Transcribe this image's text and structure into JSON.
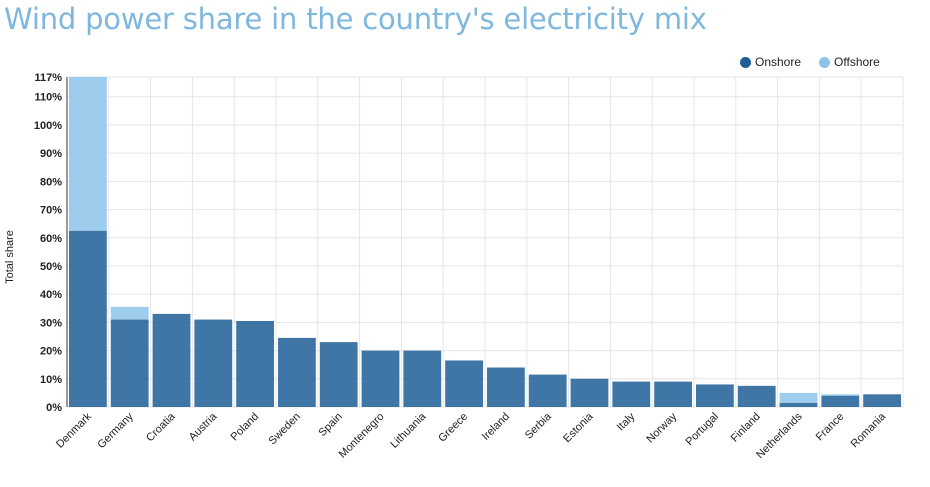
{
  "chart_data": {
    "type": "bar",
    "stacked": true,
    "title": "Wind power share in the country's electricity mix",
    "ylabel": "Total share",
    "xlabel": "",
    "ylim": [
      0,
      117
    ],
    "grid": true,
    "legend_position": "top-right",
    "yticks": [
      "0%",
      "10%",
      "20%",
      "30%",
      "40%",
      "50%",
      "60%",
      "70%",
      "80%",
      "90%",
      "100%",
      "110%",
      "117%"
    ],
    "ytick_values": [
      0,
      10,
      20,
      30,
      40,
      50,
      60,
      70,
      80,
      90,
      100,
      110,
      117
    ],
    "categories": [
      "Denmark",
      "Germany",
      "Croatia",
      "Austria",
      "Poland",
      "Sweden",
      "Spain",
      "Montenegro",
      "Lithuania",
      "Greece",
      "Ireland",
      "Serbia",
      "Estonia",
      "Italy",
      "Norway",
      "Portugal",
      "Finland",
      "Netherlands",
      "France",
      "Romania"
    ],
    "series": [
      {
        "name": "Onshore",
        "color": "#1f5e96",
        "values": [
          62.5,
          31,
          33,
          31,
          30.5,
          24.5,
          23,
          20,
          20,
          16.5,
          14,
          11.5,
          10,
          9,
          9,
          8,
          7.5,
          1.5,
          4,
          4.5
        ]
      },
      {
        "name": "Offshore",
        "color": "#8cc3ea",
        "values": [
          54.5,
          4.5,
          0,
          0,
          0,
          0,
          0,
          0,
          0,
          0,
          0,
          0,
          0,
          0,
          0,
          0,
          0,
          3.5,
          0.5,
          0
        ]
      }
    ]
  },
  "legend": {
    "items": [
      {
        "label": "Onshore",
        "color": "#1f5e96"
      },
      {
        "label": "Offshore",
        "color": "#8cc3ea"
      }
    ]
  }
}
